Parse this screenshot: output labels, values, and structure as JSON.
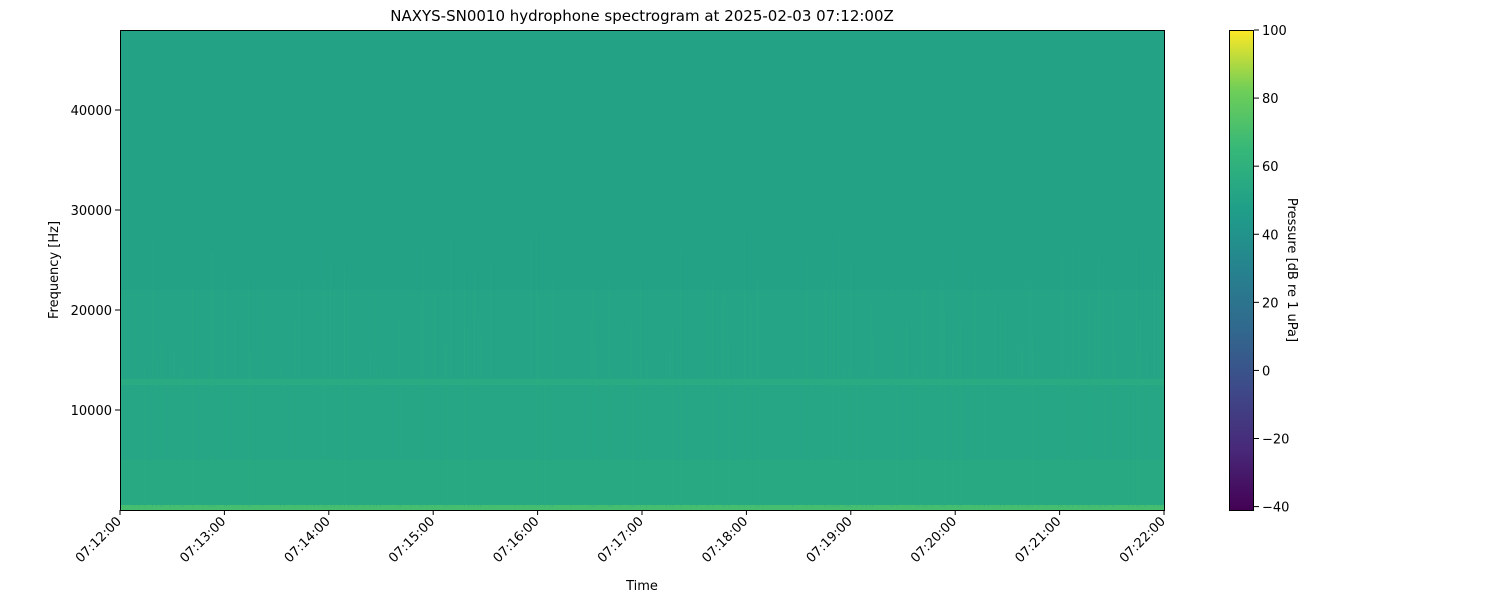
{
  "chart_data": {
    "type": "heatmap",
    "title": "NAXYS-SN0010 hydrophone spectrogram at 2025-02-03 07:12:00Z",
    "xlabel": "Time",
    "ylabel": "Frequency [Hz]",
    "x_ticks": [
      "07:12:00",
      "07:13:00",
      "07:14:00",
      "07:15:00",
      "07:16:00",
      "07:17:00",
      "07:18:00",
      "07:19:00",
      "07:20:00",
      "07:21:00",
      "07:22:00"
    ],
    "xlim": [
      "07:12:00",
      "07:22:00"
    ],
    "y_ticks": [
      10000,
      20000,
      30000,
      40000
    ],
    "ylim": [
      0,
      48000
    ],
    "colormap": "viridis",
    "colorbar": {
      "label": "Pressure [dB re 1 uPa]",
      "ticks": [
        -40,
        -20,
        0,
        20,
        40,
        60,
        80,
        100
      ],
      "range": [
        -41,
        100
      ]
    },
    "frequency_bands": [
      {
        "from_hz": 0,
        "to_hz": 500,
        "level_db": 70
      },
      {
        "from_hz": 500,
        "to_hz": 5000,
        "level_db": 55
      },
      {
        "from_hz": 5000,
        "to_hz": 12500,
        "level_db": 53
      },
      {
        "from_hz": 12500,
        "to_hz": 13100,
        "level_db": 56
      },
      {
        "from_hz": 13100,
        "to_hz": 22000,
        "level_db": 52
      },
      {
        "from_hz": 22000,
        "to_hz": 48000,
        "level_db": 50
      }
    ],
    "grid": false
  }
}
